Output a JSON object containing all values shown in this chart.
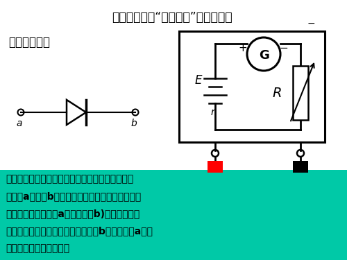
{
  "title": "多用电表探究“黑盒子内”的电学元件",
  "subtitle": "二极管的特性",
  "bg_color": "#ffffff",
  "bottom_bg_color": "#00c9a7",
  "bottom_text_line1": "二极管的特点是单向导电性，如图所示，电流只能",
  "bottom_text_line2": "由正极a流负极b。因此用多用电表的欧姆档测量其",
  "bottom_text_line3": "正向电阻（黑表笔接a，红表笔接b)时，有较小电",
  "bottom_text_line4": "阻，而测量其反向电阻时（黑表笔接b，红表毕接a），",
  "bottom_text_line5": "电阻为很大或接近无穷大",
  "bottom_text_color": "#000000",
  "title_color": "#000000",
  "subtitle_color": "#000000",
  "minus_sign_top": "−",
  "label_E": "E",
  "label_r": "r",
  "label_G": "G",
  "label_R": "R",
  "label_a": "a",
  "label_b": "b",
  "label_plus": "+",
  "label_minus": "−"
}
